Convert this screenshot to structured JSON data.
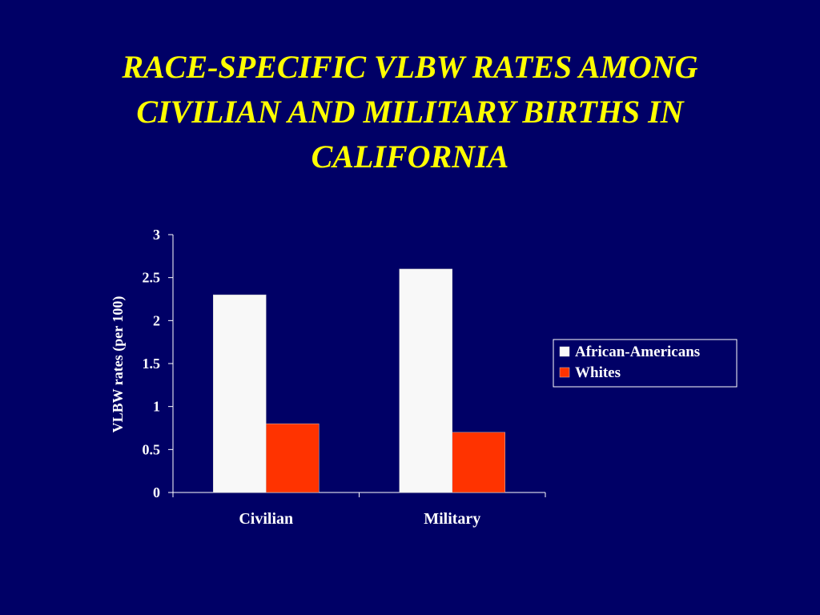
{
  "slide": {
    "title_lines": [
      "RACE-SPECIFIC VLBW RATES AMONG",
      "CIVILIAN AND MILITARY BIRTHS IN",
      "CALIFORNIA"
    ],
    "background_color": "#000066",
    "title_color": "#ffff00"
  },
  "chart_data": {
    "type": "bar",
    "title": "RACE-SPECIFIC VLBW RATES AMONG CIVILIAN AND MILITARY BIRTHS IN CALIFORNIA",
    "categories": [
      "Civilian",
      "Military"
    ],
    "series": [
      {
        "name": "African-Americans",
        "values": [
          2.3,
          2.6
        ],
        "color": "#f8f8f8"
      },
      {
        "name": "Whites",
        "values": [
          0.8,
          0.7
        ],
        "color": "#ff3300"
      }
    ],
    "xlabel": "",
    "ylabel": "VLBW rates  (per 100)",
    "ylim": [
      0,
      3
    ],
    "yticks": [
      "0",
      "0.5",
      "1",
      "1.5",
      "2",
      "2.5",
      "3"
    ],
    "grid": false,
    "legend_position": "right"
  }
}
